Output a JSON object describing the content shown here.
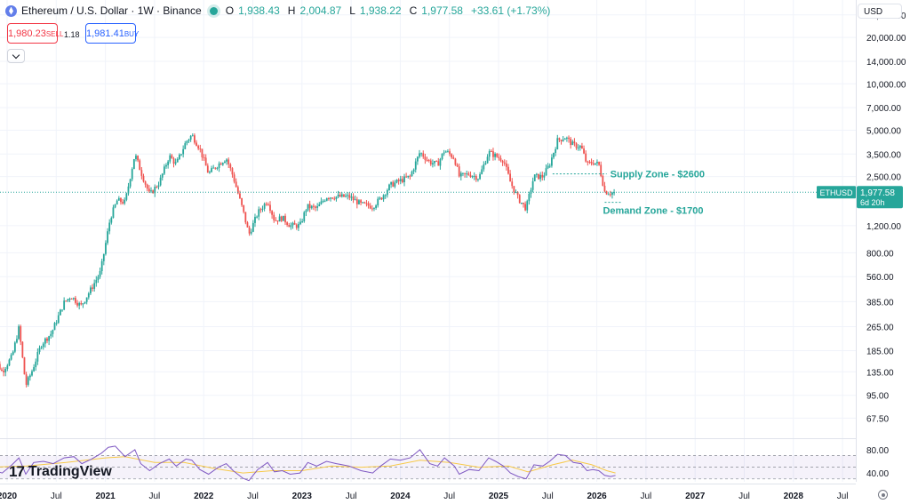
{
  "header": {
    "symbol_title": "Ethereum / U.S. Dollar · 1W · Binance",
    "open_key": "O",
    "open": "1,938.43",
    "high_key": "H",
    "high": "2,004.87",
    "low_key": "L",
    "low": "1,938.22",
    "close_key": "C",
    "close": "1,977.58",
    "change": "+33.61 (+1.73%)"
  },
  "trade": {
    "sell_price": "1,980.23",
    "sell_label": "SELL",
    "spread": "1.18",
    "buy_price": "1,981.41",
    "buy_label": "BUY"
  },
  "currency": "USD",
  "price_tag": {
    "symbol": "ETHUSD",
    "price": "1,977.58",
    "countdown": "6d 20h"
  },
  "branding": {
    "logo_mark": "17",
    "logo_text": "TradingView"
  },
  "colors": {
    "up": "#26a69a",
    "down": "#ef5350",
    "rsi_line": "#7e57c2",
    "rsi_ma": "#f7c948",
    "rsi_band": "#7e57c2"
  },
  "chart_data": [
    {
      "type": "candlestick",
      "title": "Ethereum / U.S. Dollar · 1W · Binance",
      "y_scale": "log",
      "y_ticks": [
        "28,000.00",
        "20,000.00",
        "14,000.00",
        "10,000.00",
        "7,000.00",
        "5,000.00",
        "3,500.00",
        "2,500.00",
        "1,200.00",
        "800.00",
        "560.00",
        "385.00",
        "265.00",
        "185.00",
        "135.00",
        "95.00",
        "67.50"
      ],
      "y_tick_values": [
        28000,
        20000,
        14000,
        10000,
        7000,
        5000,
        3500,
        2500,
        1200,
        800,
        560,
        385,
        265,
        185,
        135,
        95,
        67.5
      ],
      "x_ticks": [
        "2020",
        "Jul",
        "2021",
        "Jul",
        "2022",
        "Jul",
        "2023",
        "Jul",
        "2024",
        "Jul",
        "2025",
        "Jul",
        "2026",
        "Jul",
        "2027",
        "Jul",
        "2028",
        "Jul"
      ],
      "x_tick_times": [
        2020.0,
        2020.5,
        2021.0,
        2021.5,
        2022.0,
        2022.5,
        2023.0,
        2023.5,
        2024.0,
        2024.5,
        2025.0,
        2025.5,
        2026.0,
        2026.5,
        2027.0,
        2027.5,
        2028.0,
        2028.5
      ],
      "x_range": [
        2020.0,
        2028.6
      ],
      "y_range": [
        50,
        35000
      ],
      "last_price": 1977.58,
      "anchors": [
        [
          2019.83,
          180
        ],
        [
          2019.95,
          135
        ],
        [
          2020.05,
          170
        ],
        [
          2020.12,
          260
        ],
        [
          2020.19,
          110
        ],
        [
          2020.25,
          135
        ],
        [
          2020.35,
          205
        ],
        [
          2020.45,
          240
        ],
        [
          2020.58,
          380
        ],
        [
          2020.65,
          420
        ],
        [
          2020.75,
          360
        ],
        [
          2020.85,
          460
        ],
        [
          2020.95,
          600
        ],
        [
          2021.05,
          1350
        ],
        [
          2021.12,
          1750
        ],
        [
          2021.2,
          1700
        ],
        [
          2021.3,
          3500
        ],
        [
          2021.36,
          2700
        ],
        [
          2021.45,
          1900
        ],
        [
          2021.55,
          2300
        ],
        [
          2021.65,
          3400
        ],
        [
          2021.72,
          3000
        ],
        [
          2021.82,
          4200
        ],
        [
          2021.88,
          4650
        ],
        [
          2021.96,
          3800
        ],
        [
          2022.05,
          2600
        ],
        [
          2022.12,
          2900
        ],
        [
          2022.23,
          3300
        ],
        [
          2022.3,
          2500
        ],
        [
          2022.4,
          1500
        ],
        [
          2022.46,
          1050
        ],
        [
          2022.55,
          1450
        ],
        [
          2022.65,
          1750
        ],
        [
          2022.72,
          1300
        ],
        [
          2022.8,
          1350
        ],
        [
          2022.88,
          1200
        ],
        [
          2022.98,
          1200
        ],
        [
          2023.05,
          1600
        ],
        [
          2023.15,
          1550
        ],
        [
          2023.25,
          1850
        ],
        [
          2023.35,
          1850
        ],
        [
          2023.48,
          1850
        ],
        [
          2023.6,
          1650
        ],
        [
          2023.72,
          1600
        ],
        [
          2023.8,
          1800
        ],
        [
          2023.9,
          2200
        ],
        [
          2024.0,
          2350
        ],
        [
          2024.1,
          2500
        ],
        [
          2024.2,
          3600
        ],
        [
          2024.3,
          3100
        ],
        [
          2024.38,
          3000
        ],
        [
          2024.45,
          3700
        ],
        [
          2024.55,
          3300
        ],
        [
          2024.6,
          2500
        ],
        [
          2024.7,
          2600
        ],
        [
          2024.8,
          2450
        ],
        [
          2024.9,
          3600
        ],
        [
          2024.97,
          3400
        ],
        [
          2025.05,
          3200
        ],
        [
          2025.12,
          2300
        ],
        [
          2025.2,
          1800
        ],
        [
          2025.28,
          1550
        ],
        [
          2025.36,
          2500
        ],
        [
          2025.45,
          2500
        ],
        [
          2025.52,
          3000
        ],
        [
          2025.6,
          4300
        ],
        [
          2025.68,
          4500
        ],
        [
          2025.76,
          4000
        ],
        [
          2025.84,
          3900
        ],
        [
          2025.9,
          3000
        ],
        [
          2025.96,
          3100
        ],
        [
          2026.02,
          3000
        ],
        [
          2026.08,
          2000
        ],
        [
          2026.14,
          1960
        ],
        [
          2026.19,
          1977.58
        ]
      ],
      "annotations": [
        {
          "label": "Supply Zone - $2600",
          "price": 2600,
          "t_start": 2025.55,
          "t_end": 2026.1
        },
        {
          "label": "Demand Zone - $1700",
          "price": 1700,
          "t_start": 2026.08,
          "t_end": 2026.25
        }
      ]
    },
    {
      "type": "line",
      "title": "",
      "y_ticks": [
        "80.00",
        "40.00"
      ],
      "y_tick_values": [
        80,
        40
      ],
      "y_range": [
        25,
        95
      ],
      "band": [
        30,
        70
      ],
      "series": [
        {
          "points": [
            [
              2019.83,
              46
            ],
            [
              2019.95,
              40
            ],
            [
              2020.05,
              54
            ],
            [
              2020.12,
              66
            ],
            [
              2020.19,
              38
            ],
            [
              2020.27,
              58
            ],
            [
              2020.37,
              60
            ],
            [
              2020.47,
              56
            ],
            [
              2020.58,
              66
            ],
            [
              2020.68,
              68
            ],
            [
              2020.76,
              56
            ],
            [
              2020.86,
              64
            ],
            [
              2020.96,
              74
            ],
            [
              2021.03,
              84
            ],
            [
              2021.1,
              86
            ],
            [
              2021.2,
              68
            ],
            [
              2021.3,
              80
            ],
            [
              2021.36,
              56
            ],
            [
              2021.45,
              44
            ],
            [
              2021.55,
              56
            ],
            [
              2021.65,
              64
            ],
            [
              2021.72,
              52
            ],
            [
              2021.82,
              64
            ],
            [
              2021.88,
              62
            ],
            [
              2021.96,
              46
            ],
            [
              2022.05,
              38
            ],
            [
              2022.15,
              50
            ],
            [
              2022.23,
              56
            ],
            [
              2022.3,
              44
            ],
            [
              2022.4,
              31
            ],
            [
              2022.46,
              27
            ],
            [
              2022.55,
              46
            ],
            [
              2022.65,
              58
            ],
            [
              2022.72,
              42
            ],
            [
              2022.8,
              44
            ],
            [
              2022.88,
              38
            ],
            [
              2022.98,
              40
            ],
            [
              2023.06,
              58
            ],
            [
              2023.15,
              52
            ],
            [
              2023.25,
              60
            ],
            [
              2023.35,
              56
            ],
            [
              2023.48,
              52
            ],
            [
              2023.6,
              44
            ],
            [
              2023.72,
              40
            ],
            [
              2023.8,
              52
            ],
            [
              2023.9,
              64
            ],
            [
              2024.0,
              62
            ],
            [
              2024.1,
              66
            ],
            [
              2024.2,
              80
            ],
            [
              2024.3,
              56
            ],
            [
              2024.38,
              52
            ],
            [
              2024.45,
              66
            ],
            [
              2024.55,
              52
            ],
            [
              2024.6,
              38
            ],
            [
              2024.7,
              46
            ],
            [
              2024.8,
              44
            ],
            [
              2024.9,
              66
            ],
            [
              2024.97,
              60
            ],
            [
              2025.05,
              52
            ],
            [
              2025.12,
              40
            ],
            [
              2025.2,
              34
            ],
            [
              2025.28,
              30
            ],
            [
              2025.36,
              54
            ],
            [
              2025.45,
              52
            ],
            [
              2025.52,
              60
            ],
            [
              2025.6,
              72
            ],
            [
              2025.68,
              70
            ],
            [
              2025.76,
              58
            ],
            [
              2025.84,
              56
            ],
            [
              2025.9,
              44
            ],
            [
              2025.96,
              46
            ],
            [
              2026.02,
              44
            ],
            [
              2026.08,
              36
            ],
            [
              2026.14,
              34
            ],
            [
              2026.19,
              36
            ]
          ]
        },
        {
          "points": [
            [
              2019.83,
              50
            ],
            [
              2020.2,
              52
            ],
            [
              2020.6,
              58
            ],
            [
              2021.0,
              66
            ],
            [
              2021.2,
              68
            ],
            [
              2021.5,
              58
            ],
            [
              2021.8,
              58
            ],
            [
              2022.1,
              48
            ],
            [
              2022.4,
              40
            ],
            [
              2022.7,
              44
            ],
            [
              2023.0,
              44
            ],
            [
              2023.3,
              52
            ],
            [
              2023.6,
              50
            ],
            [
              2023.9,
              52
            ],
            [
              2024.2,
              62
            ],
            [
              2024.5,
              58
            ],
            [
              2024.8,
              50
            ],
            [
              2025.1,
              52
            ],
            [
              2025.3,
              42
            ],
            [
              2025.55,
              54
            ],
            [
              2025.75,
              62
            ],
            [
              2025.95,
              54
            ],
            [
              2026.1,
              44
            ],
            [
              2026.19,
              40
            ]
          ]
        }
      ]
    }
  ]
}
